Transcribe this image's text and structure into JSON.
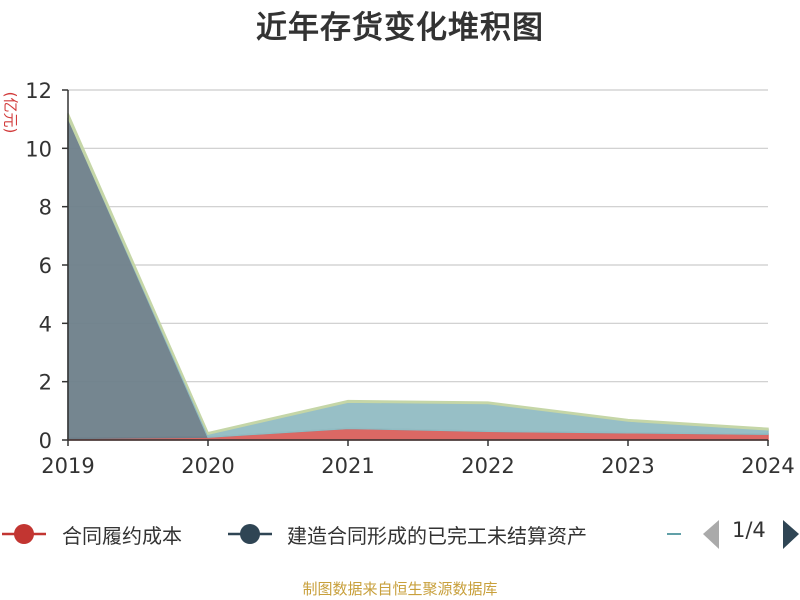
{
  "title": "近年存货变化堆积图",
  "y_unit_label": "(亿元)",
  "legend": {
    "items": [
      {
        "label": "合同履约成本",
        "color": "#c23531"
      },
      {
        "label": "建造合同形成的已完工未结算资产",
        "color": "#2f4554"
      }
    ],
    "page_indicator": "1/4"
  },
  "footer": "制图数据来自恒生聚源数据库",
  "chart_data": {
    "type": "area",
    "stacked": true,
    "title": "近年存货变化堆积图",
    "ylabel": "(亿元)",
    "x": [
      "2019",
      "2020",
      "2021",
      "2022",
      "2023",
      "2024"
    ],
    "ylim": [
      0,
      12
    ],
    "yticks": [
      0,
      2,
      4,
      6,
      8,
      10,
      12
    ],
    "grid": true,
    "legend_position": "bottom",
    "series": [
      {
        "name": "合同履约成本",
        "color": "#d9605c",
        "values": [
          0.05,
          0.1,
          0.4,
          0.3,
          0.25,
          0.2
        ]
      },
      {
        "name": "建造合同形成的已完工未结算资产",
        "color": "#6e7f8a",
        "values": [
          11.0,
          0.0,
          0.0,
          0.0,
          0.0,
          0.0
        ]
      },
      {
        "color": "#91bcc3",
        "values": [
          0.0,
          0.1,
          0.9,
          0.95,
          0.4,
          0.15
        ]
      },
      {
        "color": "#c5d6a7",
        "values": [
          0.15,
          0.05,
          0.05,
          0.05,
          0.05,
          0.05
        ]
      }
    ]
  }
}
